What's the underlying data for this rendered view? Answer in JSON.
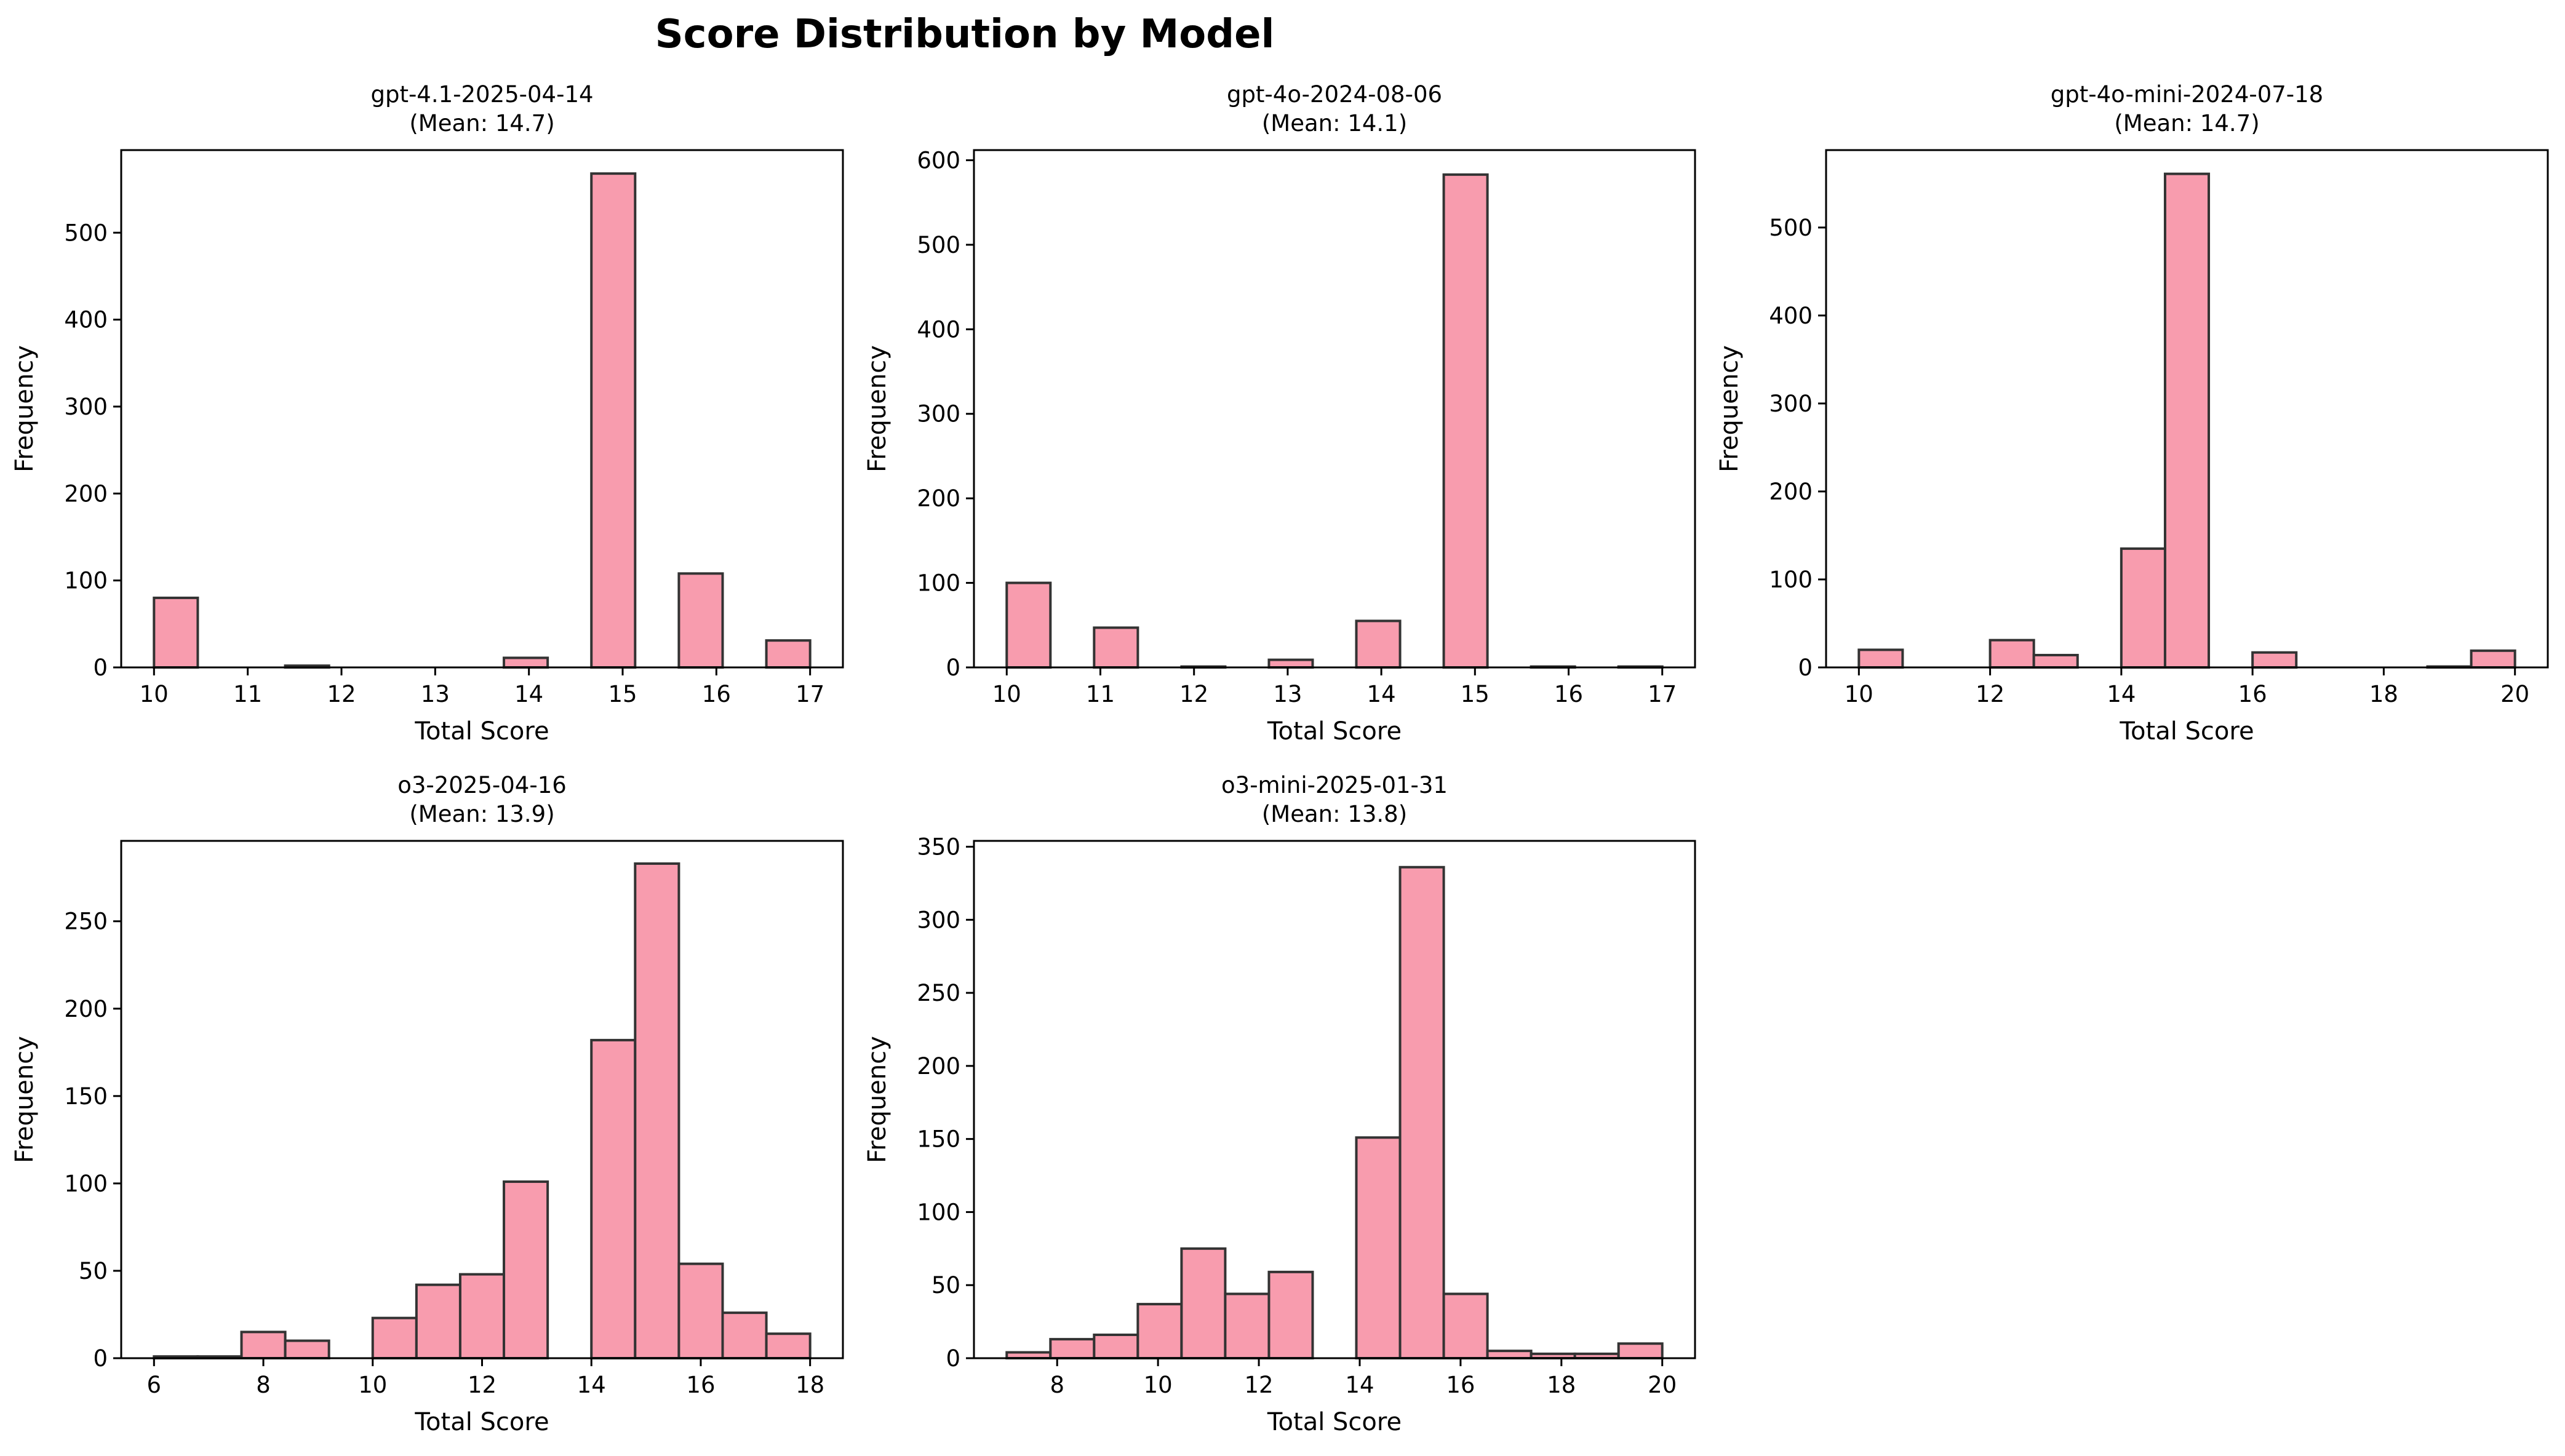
{
  "figure": {
    "title": "Score Distribution by Model",
    "bar_color": "#f89cae",
    "bar_edge_color": "#333333"
  },
  "chart_data": [
    {
      "type": "bar",
      "title": "gpt-4.1-2025-04-14",
      "subtitle": "(Mean: 14.7)",
      "xlabel": "Total Score",
      "ylabel": "Frequency",
      "xlim": [
        9.65,
        17.35
      ],
      "ylim": [
        0,
        595
      ],
      "xticks": [
        10,
        11,
        12,
        13,
        14,
        15,
        16,
        17
      ],
      "yticks": [
        0,
        100,
        200,
        300,
        400,
        500
      ],
      "bins": [
        [
          10.0,
          10.4667,
          80
        ],
        [
          11.4,
          11.8667,
          2
        ],
        [
          13.7333,
          14.2,
          11
        ],
        [
          14.6667,
          15.1333,
          568
        ],
        [
          15.6,
          16.0667,
          108
        ],
        [
          16.5333,
          17.0,
          31
        ]
      ]
    },
    {
      "type": "bar",
      "title": "gpt-4o-2024-08-06",
      "subtitle": "(Mean: 14.1)",
      "xlabel": "Total Score",
      "ylabel": "Frequency",
      "xlim": [
        9.65,
        17.35
      ],
      "ylim": [
        0,
        612
      ],
      "xticks": [
        10,
        11,
        12,
        13,
        14,
        15,
        16,
        17
      ],
      "yticks": [
        0,
        100,
        200,
        300,
        400,
        500,
        600
      ],
      "bins": [
        [
          10.0,
          10.4667,
          100
        ],
        [
          10.9333,
          11.4,
          47
        ],
        [
          11.8667,
          12.3333,
          1
        ],
        [
          12.8,
          13.2667,
          9
        ],
        [
          13.7333,
          14.2,
          55
        ],
        [
          14.6667,
          15.1333,
          583
        ],
        [
          15.6,
          16.0667,
          1
        ],
        [
          16.5333,
          17.0,
          1
        ]
      ]
    },
    {
      "type": "bar",
      "title": "gpt-4o-mini-2024-07-18",
      "subtitle": "(Mean: 14.7)",
      "xlabel": "Total Score",
      "ylabel": "Frequency",
      "xlim": [
        9.5,
        20.5
      ],
      "ylim": [
        0,
        588
      ],
      "xticks": [
        10,
        12,
        14,
        16,
        18,
        20
      ],
      "yticks": [
        0,
        100,
        200,
        300,
        400,
        500
      ],
      "bins": [
        [
          10.0,
          10.6667,
          20
        ],
        [
          12.0,
          12.6667,
          31
        ],
        [
          12.6667,
          13.3333,
          14
        ],
        [
          14.0,
          14.6667,
          135
        ],
        [
          14.6667,
          15.3333,
          561
        ],
        [
          16.0,
          16.6667,
          17
        ],
        [
          18.6667,
          19.3333,
          1
        ],
        [
          19.3333,
          20.0,
          19
        ]
      ]
    },
    {
      "type": "bar",
      "title": "o3-2025-04-16",
      "subtitle": "(Mean: 13.9)",
      "xlabel": "Total Score",
      "ylabel": "Frequency",
      "xlim": [
        5.4,
        18.6
      ],
      "ylim": [
        0,
        296
      ],
      "xticks": [
        6,
        8,
        10,
        12,
        14,
        16,
        18
      ],
      "yticks": [
        0,
        50,
        100,
        150,
        200,
        250
      ],
      "bins": [
        [
          6.0,
          6.8,
          1
        ],
        [
          6.8,
          7.6,
          1
        ],
        [
          7.6,
          8.4,
          15
        ],
        [
          8.4,
          9.2,
          10
        ],
        [
          10.0,
          10.8,
          23
        ],
        [
          10.8,
          11.6,
          42
        ],
        [
          11.6,
          12.4,
          48
        ],
        [
          12.4,
          13.2,
          101
        ],
        [
          14.0,
          14.8,
          182
        ],
        [
          14.8,
          15.6,
          283
        ],
        [
          15.6,
          16.4,
          54
        ],
        [
          16.4,
          17.2,
          26
        ],
        [
          17.2,
          18.0,
          14
        ]
      ]
    },
    {
      "type": "bar",
      "title": "o3-mini-2025-01-31",
      "subtitle": "(Mean: 13.8)",
      "xlabel": "Total Score",
      "ylabel": "Frequency",
      "xlim": [
        6.35,
        20.65
      ],
      "ylim": [
        0,
        354
      ],
      "xticks": [
        8,
        10,
        12,
        14,
        16,
        18,
        20
      ],
      "yticks": [
        0,
        50,
        100,
        150,
        200,
        250,
        300,
        350
      ],
      "bins": [
        [
          7.0,
          7.8667,
          4
        ],
        [
          7.8667,
          8.7333,
          13
        ],
        [
          8.7333,
          9.6,
          16
        ],
        [
          9.6,
          10.4667,
          37
        ],
        [
          10.4667,
          11.3333,
          75
        ],
        [
          11.3333,
          12.2,
          44
        ],
        [
          12.2,
          13.0667,
          59
        ],
        [
          13.9333,
          14.8,
          151
        ],
        [
          14.8,
          15.6667,
          336
        ],
        [
          15.6667,
          16.5333,
          44
        ],
        [
          16.5333,
          17.4,
          5
        ],
        [
          17.4,
          18.2667,
          3
        ],
        [
          18.2667,
          19.1333,
          3
        ],
        [
          19.1333,
          20.0,
          10
        ]
      ]
    }
  ]
}
